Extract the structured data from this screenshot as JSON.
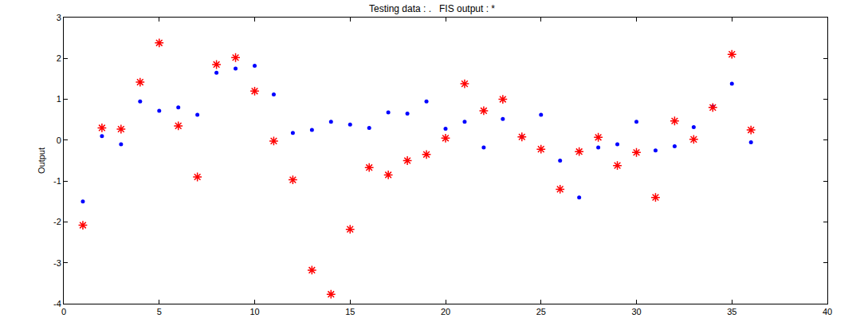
{
  "chart_data": {
    "type": "scatter",
    "title": "Testing data : .   FIS output : *",
    "y_label": "Output",
    "x": [
      1,
      2,
      3,
      4,
      5,
      6,
      7,
      8,
      9,
      10,
      11,
      12,
      13,
      14,
      15,
      16,
      17,
      18,
      19,
      20,
      21,
      22,
      23,
      24,
      25,
      26,
      27,
      28,
      29,
      30,
      31,
      32,
      33,
      34,
      35,
      36
    ],
    "series": [
      {
        "name": "Testing data",
        "color": "#0000ff",
        "marker": "dot",
        "values": [
          -1.5,
          0.1,
          -0.1,
          0.95,
          0.72,
          0.8,
          0.62,
          1.65,
          1.75,
          1.82,
          1.12,
          0.18,
          0.25,
          0.45,
          0.38,
          0.3,
          0.68,
          0.65,
          0.95,
          0.28,
          0.45,
          -0.18,
          0.52,
          0.08,
          0.62,
          -0.5,
          -1.4,
          -0.18,
          -0.1,
          0.45,
          -0.25,
          -0.15,
          0.32,
          0.82,
          1.38,
          -0.05
        ]
      },
      {
        "name": "FIS output",
        "color": "#ff0000",
        "marker": "asterisk",
        "values": [
          -2.08,
          0.3,
          0.27,
          1.42,
          2.38,
          0.35,
          -0.9,
          1.85,
          2.02,
          1.2,
          -0.02,
          -0.97,
          -3.18,
          -3.77,
          -2.18,
          -0.67,
          -0.85,
          -0.5,
          -0.35,
          0.05,
          1.38,
          0.72,
          1.0,
          0.08,
          -0.22,
          -1.2,
          -0.28,
          0.07,
          -0.62,
          -0.3,
          -1.4,
          0.47,
          0.02,
          0.8,
          2.1,
          0.25
        ]
      }
    ],
    "xlim": [
      0,
      40
    ],
    "xticks": [
      0,
      5,
      10,
      15,
      20,
      25,
      30,
      35,
      40
    ],
    "ylim": [
      -4,
      3
    ],
    "yticks": [
      -4,
      -3,
      -2,
      -1,
      0,
      1,
      2,
      3
    ],
    "grid": false
  }
}
